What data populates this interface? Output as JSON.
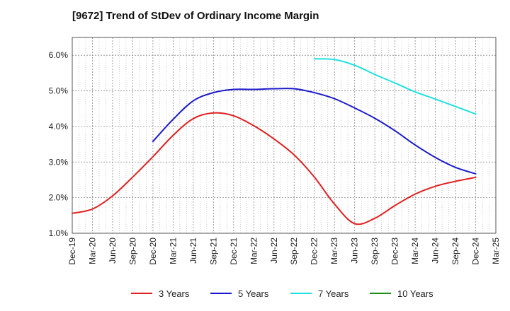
{
  "chart_data": {
    "type": "line",
    "title": "[9672]  Trend of StDev of Ordinary Income Margin",
    "xlabel": "",
    "ylabel": "",
    "categories": [
      "Dec-19",
      "Mar-20",
      "Jun-20",
      "Sep-20",
      "Dec-20",
      "Mar-21",
      "Jun-21",
      "Sep-21",
      "Dec-21",
      "Mar-22",
      "Jun-22",
      "Sep-22",
      "Dec-22",
      "Mar-23",
      "Jun-23",
      "Sep-23",
      "Dec-23",
      "Mar-24",
      "Jun-24",
      "Sep-24",
      "Dec-24",
      "Mar-25"
    ],
    "ylim": [
      1.0,
      6.5
    ],
    "yticks": [
      "1.0%",
      "2.0%",
      "3.0%",
      "4.0%",
      "5.0%",
      "6.0%"
    ],
    "grid": true,
    "legend_position": "bottom",
    "series": [
      {
        "name": "3 Years",
        "color": "#e02020",
        "values": [
          1.56,
          1.68,
          2.05,
          2.58,
          3.15,
          3.75,
          4.22,
          4.38,
          4.3,
          4.02,
          3.65,
          3.2,
          2.58,
          1.82,
          1.27,
          1.42,
          1.78,
          2.1,
          2.32,
          2.46,
          2.57,
          null
        ]
      },
      {
        "name": "5 Years",
        "color": "#1a1acc",
        "values": [
          null,
          null,
          null,
          null,
          3.58,
          4.2,
          4.72,
          4.95,
          5.04,
          5.04,
          5.06,
          5.06,
          4.95,
          4.78,
          4.52,
          4.23,
          3.88,
          3.48,
          3.13,
          2.85,
          2.67,
          null
        ]
      },
      {
        "name": "7 Years",
        "color": "#22e0e0",
        "values": [
          null,
          null,
          null,
          null,
          null,
          null,
          null,
          null,
          null,
          null,
          null,
          null,
          5.9,
          5.88,
          5.72,
          5.46,
          5.22,
          4.97,
          4.77,
          4.56,
          4.35,
          null
        ]
      },
      {
        "name": "10 Years",
        "color": "#1a8c1a",
        "values": [
          null,
          null,
          null,
          null,
          null,
          null,
          null,
          null,
          null,
          null,
          null,
          null,
          null,
          null,
          null,
          null,
          null,
          null,
          null,
          null,
          null,
          null
        ]
      }
    ]
  }
}
